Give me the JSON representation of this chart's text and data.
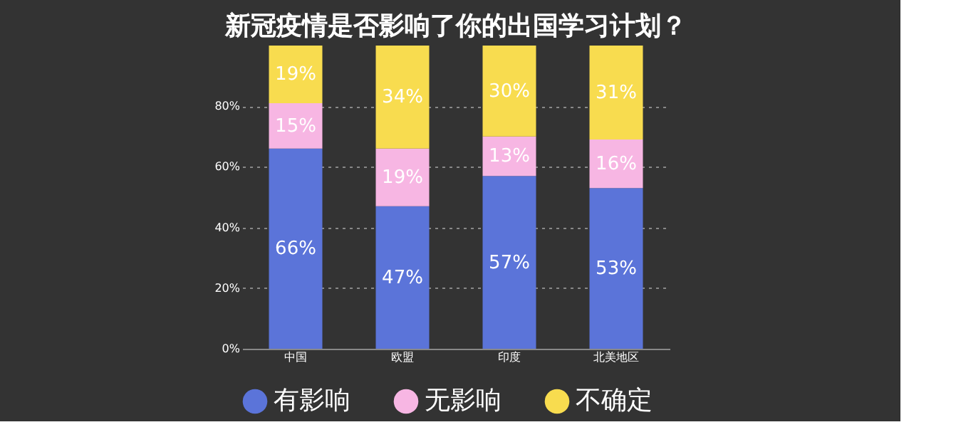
{
  "chart_data": {
    "type": "bar",
    "stacked": true,
    "title": "新冠疫情是否影响了你的出国学习计划？",
    "categories": [
      "中国",
      "欧盟",
      "印度",
      "北美地区"
    ],
    "series": [
      {
        "name": "有影响",
        "color": "#5b74d9",
        "values": [
          66,
          47,
          57,
          53
        ]
      },
      {
        "name": "无影响",
        "color": "#f7b6e3",
        "values": [
          15,
          19,
          13,
          16
        ]
      },
      {
        "name": "不确定",
        "color": "#f8dc4f",
        "values": [
          19,
          34,
          30,
          31
        ]
      }
    ],
    "ylim": [
      0,
      100
    ],
    "yticks": [
      {
        "value": 0,
        "label": "0%"
      },
      {
        "value": 20,
        "label": "20%"
      },
      {
        "value": 40,
        "label": "40%"
      },
      {
        "value": 60,
        "label": "60%"
      },
      {
        "value": 80,
        "label": "80%"
      }
    ],
    "value_labels": [
      [
        "66%",
        "47%",
        "57%",
        "53%"
      ],
      [
        "15%",
        "19%",
        "13%",
        "16%"
      ],
      [
        "19%",
        "34%",
        "30%",
        "31%"
      ]
    ],
    "grid": "y",
    "legend": "bottom"
  }
}
